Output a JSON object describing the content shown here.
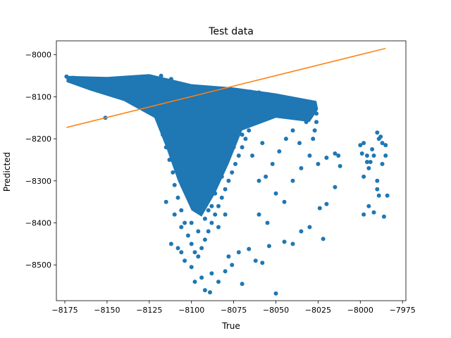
{
  "chart_data": {
    "type": "scatter",
    "title": "Test data",
    "xlabel": "True",
    "ylabel": "Predicted",
    "xlim": [
      -8180,
      -7973
    ],
    "ylim": [
      -8585,
      -7967
    ],
    "xticks": [
      -8175,
      -8150,
      -8125,
      -8100,
      -8075,
      -8050,
      -8025,
      -8000,
      -7975
    ],
    "xtick_labels": [
      "−8175",
      "−8150",
      "−8125",
      "−8100",
      "−8075",
      "−8050",
      "−8025",
      "−8000",
      "−7975"
    ],
    "yticks": [
      -8000,
      -8100,
      -8200,
      -8300,
      -8400,
      -8500
    ],
    "ytick_labels": [
      "−8000",
      "−8100",
      "−8200",
      "−8300",
      "−8400",
      "−8500"
    ],
    "grid": false,
    "colors": {
      "points": "#1f77b4",
      "line": "#ff7f0e"
    },
    "series": [
      {
        "type": "scatter",
        "points": [
          [
            -8174,
            -8052
          ],
          [
            -8172,
            -8058
          ],
          [
            -8170,
            -8055
          ],
          [
            -8168,
            -8062
          ],
          [
            -8166,
            -8066
          ],
          [
            -8163,
            -8058
          ],
          [
            -8160,
            -8064
          ],
          [
            -8158,
            -8070
          ],
          [
            -8155,
            -8061
          ],
          [
            -8152,
            -8075
          ],
          [
            -8150,
            -8068
          ],
          [
            -8147,
            -8080
          ],
          [
            -8144,
            -8072
          ],
          [
            -8142,
            -8085
          ],
          [
            -8140,
            -8078
          ],
          [
            -8137,
            -8090
          ],
          [
            -8135,
            -8082
          ],
          [
            -8132,
            -8095
          ],
          [
            -8130,
            -8088
          ],
          [
            -8127,
            -8100
          ],
          [
            -8125,
            -8092
          ],
          [
            -8122,
            -8105
          ],
          [
            -8120,
            -8098
          ],
          [
            -8117,
            -8110
          ],
          [
            -8115,
            -8102
          ],
          [
            -8112,
            -8115
          ],
          [
            -8110,
            -8108
          ],
          [
            -8107,
            -8120
          ],
          [
            -8105,
            -8112
          ],
          [
            -8102,
            -8125
          ],
          [
            -8100,
            -8116
          ],
          [
            -8097,
            -8122
          ],
          [
            -8095,
            -8110
          ],
          [
            -8092,
            -8118
          ],
          [
            -8090,
            -8106
          ],
          [
            -8087,
            -8112
          ],
          [
            -8085,
            -8100
          ],
          [
            -8082,
            -8108
          ],
          [
            -8080,
            -8096
          ],
          [
            -8077,
            -8104
          ],
          [
            -8075,
            -8092
          ],
          [
            -8072,
            -8100
          ],
          [
            -8070,
            -8090
          ],
          [
            -8067,
            -8098
          ],
          [
            -8065,
            -8088
          ],
          [
            -8062,
            -8096
          ],
          [
            -8060,
            -8090
          ],
          [
            -8057,
            -8100
          ],
          [
            -8055,
            -8094
          ],
          [
            -8052,
            -8104
          ],
          [
            -8050,
            -8098
          ],
          [
            -8047,
            -8108
          ],
          [
            -8045,
            -8102
          ],
          [
            -8042,
            -8112
          ],
          [
            -8040,
            -8106
          ],
          [
            -8037,
            -8116
          ],
          [
            -8035,
            -8110
          ],
          [
            -8032,
            -8120
          ],
          [
            -8030,
            -8116
          ],
          [
            -8028,
            -8130
          ],
          [
            -8026,
            -8140
          ],
          [
            -8026,
            -8160
          ],
          [
            -8027,
            -8180
          ],
          [
            -8028,
            -8200
          ],
          [
            -8122,
            -8060
          ],
          [
            -8118,
            -8050
          ],
          [
            -8112,
            -8058
          ],
          [
            -8125,
            -8075
          ],
          [
            -8130,
            -8060
          ],
          [
            -8120,
            -8130
          ],
          [
            -8118,
            -8160
          ],
          [
            -8117,
            -8190
          ],
          [
            -8115,
            -8220
          ],
          [
            -8113,
            -8250
          ],
          [
            -8111,
            -8280
          ],
          [
            -8110,
            -8310
          ],
          [
            -8108,
            -8340
          ],
          [
            -8106,
            -8370
          ],
          [
            -8104,
            -8400
          ],
          [
            -8102,
            -8430
          ],
          [
            -8100,
            -8450
          ],
          [
            -8098,
            -8470
          ],
          [
            -8096,
            -8480
          ],
          [
            -8094,
            -8460
          ],
          [
            -8092,
            -8440
          ],
          [
            -8090,
            -8420
          ],
          [
            -8088,
            -8400
          ],
          [
            -8086,
            -8380
          ],
          [
            -8084,
            -8360
          ],
          [
            -8082,
            -8340
          ],
          [
            -8080,
            -8320
          ],
          [
            -8078,
            -8300
          ],
          [
            -8076,
            -8280
          ],
          [
            -8074,
            -8260
          ],
          [
            -8072,
            -8240
          ],
          [
            -8070,
            -8220
          ],
          [
            -8068,
            -8200
          ],
          [
            -8066,
            -8180
          ],
          [
            -8064,
            -8160
          ],
          [
            -8110,
            -8160
          ],
          [
            -8105,
            -8190
          ],
          [
            -8100,
            -8220
          ],
          [
            -8095,
            -8250
          ],
          [
            -8090,
            -8280
          ],
          [
            -8085,
            -8300
          ],
          [
            -8080,
            -8250
          ],
          [
            -8075,
            -8220
          ],
          [
            -8070,
            -8190
          ],
          [
            -8102,
            -8300
          ],
          [
            -8098,
            -8330
          ],
          [
            -8094,
            -8350
          ],
          [
            -8090,
            -8370
          ],
          [
            -8086,
            -8330
          ],
          [
            -8082,
            -8290
          ],
          [
            -8115,
            -8350
          ],
          [
            -8110,
            -8380
          ],
          [
            -8106,
            -8410
          ],
          [
            -8100,
            -8400
          ],
          [
            -8096,
            -8420
          ],
          [
            -8092,
            -8390
          ],
          [
            -8088,
            -8360
          ],
          [
            -8084,
            -8410
          ],
          [
            -8080,
            -8380
          ],
          [
            -8088,
            -8520
          ],
          [
            -8094,
            -8530
          ],
          [
            -8098,
            -8540
          ],
          [
            -8092,
            -8560
          ],
          [
            -8089,
            -8565
          ],
          [
            -8084,
            -8540
          ],
          [
            -8080,
            -8515
          ],
          [
            -8076,
            -8500
          ],
          [
            -8070,
            -8545
          ],
          [
            -8062,
            -8490
          ],
          [
            -8058,
            -8495
          ],
          [
            -8054,
            -8455
          ],
          [
            -8050,
            -8568
          ],
          [
            -8045,
            -8445
          ],
          [
            -8040,
            -8450
          ],
          [
            -8035,
            -8420
          ],
          [
            -8030,
            -8410
          ],
          [
            -8022,
            -8438
          ],
          [
            -8020,
            -8355
          ],
          [
            -8024,
            -8365
          ],
          [
            -8066,
            -8462
          ],
          [
            -8072,
            -8470
          ],
          [
            -8078,
            -8480
          ],
          [
            -8108,
            -8460
          ],
          [
            -8112,
            -8450
          ],
          [
            -8104,
            -8490
          ],
          [
            -8100,
            -8505
          ],
          [
            -8106,
            -8470
          ],
          [
            -8060,
            -8380
          ],
          [
            -8055,
            -8400
          ],
          [
            -8050,
            -8330
          ],
          [
            -8045,
            -8350
          ],
          [
            -8040,
            -8300
          ],
          [
            -8035,
            -8270
          ],
          [
            -8030,
            -8240
          ],
          [
            -8025,
            -8260
          ],
          [
            -8020,
            -8245
          ],
          [
            -8056,
            -8290
          ],
          [
            -8052,
            -8260
          ],
          [
            -8048,
            -8230
          ],
          [
            -8044,
            -8200
          ],
          [
            -8040,
            -8180
          ],
          [
            -8036,
            -8210
          ],
          [
            -8032,
            -8160
          ],
          [
            -8064,
            -8240
          ],
          [
            -8058,
            -8210
          ],
          [
            -8060,
            -8300
          ],
          [
            -8015,
            -8235
          ],
          [
            -8013,
            -8240
          ],
          [
            -8015,
            -8315
          ],
          [
            -8012,
            -8265
          ],
          [
            -8000,
            -8215
          ],
          [
            -7998,
            -8210
          ],
          [
            -7996,
            -8255
          ],
          [
            -7994,
            -8255
          ],
          [
            -7999,
            -8235
          ],
          [
            -7996,
            -8240
          ],
          [
            -7993,
            -8225
          ],
          [
            -7992,
            -8240
          ],
          [
            -7989,
            -8200
          ],
          [
            -7987,
            -8210
          ],
          [
            -7990,
            -8185
          ],
          [
            -7988,
            -8195
          ],
          [
            -7985,
            -8215
          ],
          [
            -7985,
            -8240
          ],
          [
            -7987,
            -8260
          ],
          [
            -7990,
            -8300
          ],
          [
            -7990,
            -8320
          ],
          [
            -7995,
            -8360
          ],
          [
            -7998,
            -8380
          ],
          [
            -7992,
            -8375
          ],
          [
            -7989,
            -8335
          ],
          [
            -7986,
            -8385
          ],
          [
            -7984,
            -8335
          ],
          [
            -7998,
            -8290
          ],
          [
            -7995,
            -8270
          ],
          [
            -8151,
            -8150
          ],
          [
            -8140,
            -8080
          ],
          [
            -8160,
            -8075
          ],
          [
            -8135,
            -8105
          ]
        ]
      },
      {
        "type": "line",
        "points": [
          [
            -8174,
            -8173
          ],
          [
            -7985,
            -7985
          ]
        ]
      }
    ]
  }
}
